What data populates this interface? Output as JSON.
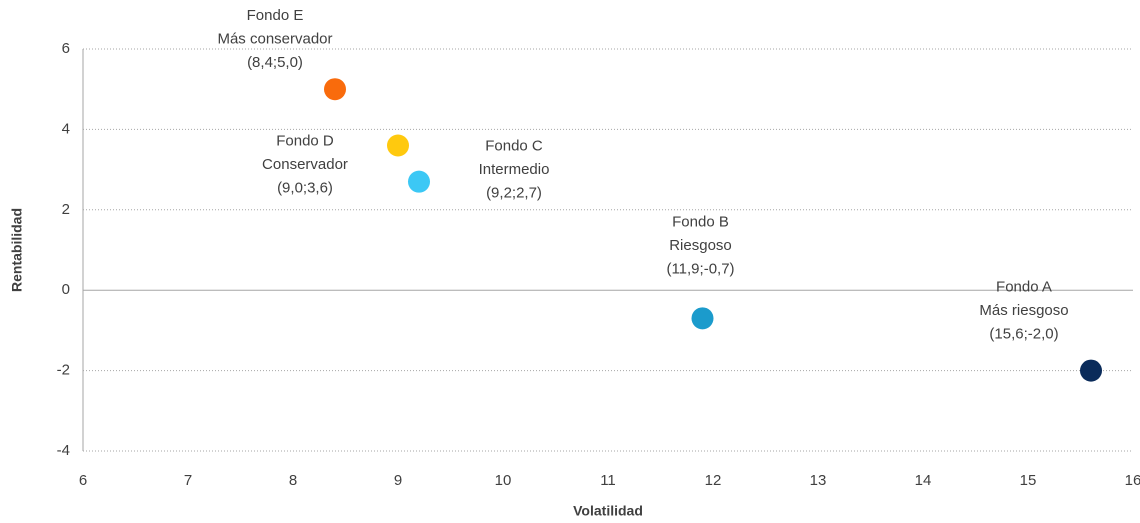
{
  "chart_data": {
    "type": "scatter",
    "x_label": "Volatilidad",
    "y_label": "Rentabilidad",
    "xlim": [
      6,
      16
    ],
    "xticks": [
      6,
      7,
      8,
      9,
      10,
      11,
      12,
      13,
      14,
      15,
      16
    ],
    "ylim": [
      -4,
      6
    ],
    "yticks": [
      -4,
      -2,
      0,
      2,
      4,
      6
    ],
    "grid": true,
    "series": [
      {
        "name": "Fondo E",
        "description": "Más conservador",
        "color": "#f96b0c",
        "x": [
          8.4
        ],
        "values": [
          5.0
        ],
        "value_labels": [
          "(8,4;5,0)"
        ]
      },
      {
        "name": "Fondo D",
        "description": "Conservador",
        "color": "#ffc90e",
        "x": [
          9.0
        ],
        "values": [
          3.6
        ],
        "value_labels": [
          "(9,0;3,6)"
        ]
      },
      {
        "name": "Fondo C",
        "description": "Intermedio",
        "color": "#3cc8f5",
        "x": [
          9.2
        ],
        "values": [
          2.7
        ],
        "value_labels": [
          "(9,2;2,7)"
        ]
      },
      {
        "name": "Fondo B",
        "description": "Riesgoso",
        "color": "#1b9bcc",
        "x": [
          11.9
        ],
        "values": [
          -0.7
        ],
        "value_labels": [
          "(11,9;-0,7)"
        ]
      },
      {
        "name": "Fondo A",
        "description": "Más riesgoso",
        "color": "#0a2b5a",
        "x": [
          15.6
        ],
        "values": [
          -2.0
        ],
        "value_labels": [
          "(15,6;-2,0)"
        ]
      }
    ]
  }
}
